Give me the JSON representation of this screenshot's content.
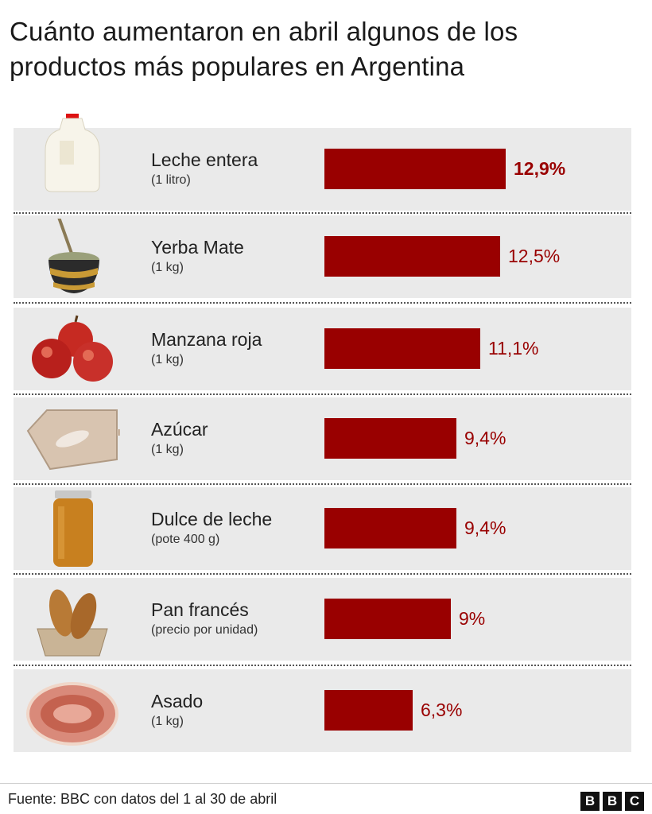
{
  "title": "Cuánto aumentaron en abril algunos de los productos más populares en Argentina",
  "source": "Fuente: BBC con datos del 1 al 30 de abril",
  "logo": [
    "B",
    "B",
    "C"
  ],
  "colors": {
    "bar": "#990000",
    "row_bg": "#eaeaea",
    "value_text": "#990000"
  },
  "chart_data": {
    "type": "bar",
    "orientation": "horizontal",
    "unit": "%",
    "categories": [
      "Leche entera",
      "Yerba Mate",
      "Manzana roja",
      "Azúcar",
      "Dulce de leche",
      "Pan francés",
      "Asado"
    ],
    "subtitles": [
      "(1 litro)",
      "(1 kg)",
      "(1 kg)",
      "(1 kg)",
      "(pote 400 g)",
      "(precio por unidad)",
      "(1 kg)"
    ],
    "values": [
      12.9,
      12.5,
      11.1,
      9.4,
      9.4,
      9.0,
      6.3
    ],
    "value_labels": [
      "12,9%",
      "12,5%",
      "11,1%",
      "9,4%",
      "9,4%",
      "9%",
      "6,3%"
    ],
    "icons": [
      "milk-jug-icon",
      "yerba-mate-icon",
      "red-apples-icon",
      "sugar-bag-icon",
      "dulce-de-leche-jar-icon",
      "bread-basket-icon",
      "asado-meat-icon"
    ],
    "xlim": [
      0,
      12.9
    ],
    "grid": false,
    "legend": "none"
  }
}
